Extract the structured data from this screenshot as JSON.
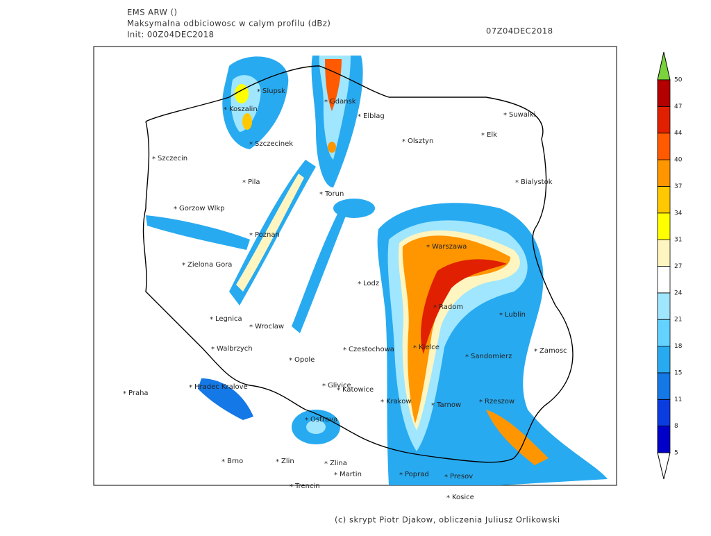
{
  "header": {
    "model": "EMS ARW ()",
    "title": "Maksymalna odbiciowosc w calym profilu (dBz)",
    "init": "Init: 00Z04DEC2018",
    "valid": "07Z04DEC2018"
  },
  "cities": [
    "Slupsk",
    "Gdansk",
    "Elblag",
    "Koszalin",
    "Suwalki",
    "Elk",
    "Olsztyn",
    "Szczecinek",
    "Szczecin",
    "Bialystok",
    "Pila",
    "Torun",
    "Gorzow Wlkp",
    "Poznan",
    "Warszawa",
    "Zielona Gora",
    "Lodz",
    "Radom",
    "Lublin",
    "Legnica",
    "Wroclaw",
    "Kielce",
    "Czestochowa",
    "Walbrzych",
    "Zamosc",
    "Sandomierz",
    "Opole",
    "Hradec Kralove",
    "Glivice",
    "Katowice",
    "Praha",
    "Krakow",
    "Tarnow",
    "Rzeszow",
    "Ostrava",
    "Brno",
    "Zlin",
    "Zlina",
    "Martin",
    "Poprad",
    "Presov",
    "Trencin",
    "Kosice"
  ],
  "colorbar": {
    "levels": [
      5,
      8,
      11,
      15,
      18,
      21,
      24,
      27,
      31,
      34,
      37,
      40,
      44,
      47,
      50
    ],
    "colors": [
      "#0000c8",
      "#0a3ce0",
      "#1478e6",
      "#28aaf0",
      "#64d2ff",
      "#a0e6ff",
      "#ffffff",
      "#fff5c0",
      "#ffff00",
      "#ffc800",
      "#ff9600",
      "#ff5a00",
      "#e02000",
      "#b40000"
    ],
    "over_color": "#7ad23c",
    "under_color": "#ffffff"
  },
  "footer": "(c) skrypt Piotr Djakow, obliczenia Juliusz Orlikowski"
}
